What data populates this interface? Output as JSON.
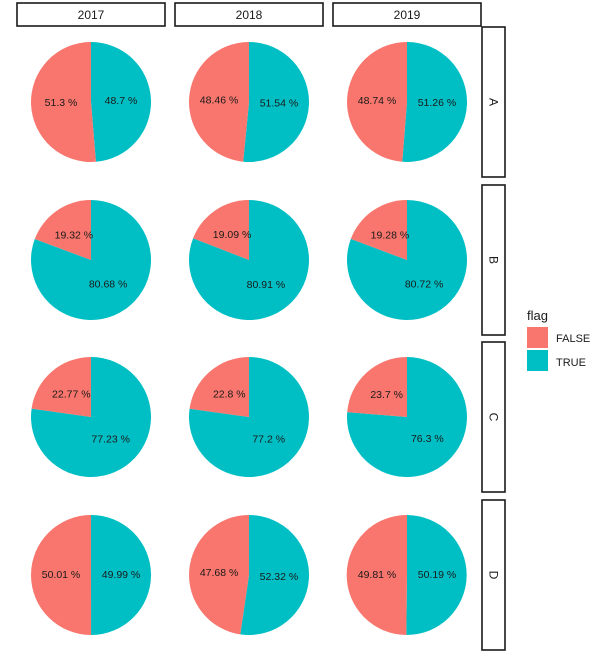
{
  "chart_data": {
    "type": "pie",
    "facet_columns": [
      "2017",
      "2018",
      "2019"
    ],
    "facet_rows": [
      "A",
      "B",
      "C",
      "D"
    ],
    "legend": {
      "title": "flag",
      "placement": "right",
      "entries": [
        {
          "name": "FALSE",
          "color": "#F8766D"
        },
        {
          "name": "TRUE",
          "color": "#00BFC4"
        }
      ]
    },
    "panels": [
      {
        "row": "A",
        "col": "2017",
        "slices": [
          {
            "name": "FALSE",
            "value": 51.3,
            "label": "51.3 %"
          },
          {
            "name": "TRUE",
            "value": 48.7,
            "label": "48.7 %"
          }
        ]
      },
      {
        "row": "A",
        "col": "2018",
        "slices": [
          {
            "name": "FALSE",
            "value": 48.46,
            "label": "48.46 %"
          },
          {
            "name": "TRUE",
            "value": 51.54,
            "label": "51.54 %"
          }
        ]
      },
      {
        "row": "A",
        "col": "2019",
        "slices": [
          {
            "name": "FALSE",
            "value": 48.74,
            "label": "48.74 %"
          },
          {
            "name": "TRUE",
            "value": 51.26,
            "label": "51.26 %"
          }
        ]
      },
      {
        "row": "B",
        "col": "2017",
        "slices": [
          {
            "name": "FALSE",
            "value": 19.32,
            "label": "19.32 %"
          },
          {
            "name": "TRUE",
            "value": 80.68,
            "label": "80.68 %"
          }
        ]
      },
      {
        "row": "B",
        "col": "2018",
        "slices": [
          {
            "name": "FALSE",
            "value": 19.09,
            "label": "19.09 %"
          },
          {
            "name": "TRUE",
            "value": 80.91,
            "label": "80.91 %"
          }
        ]
      },
      {
        "row": "B",
        "col": "2019",
        "slices": [
          {
            "name": "FALSE",
            "value": 19.28,
            "label": "19.28 %"
          },
          {
            "name": "TRUE",
            "value": 80.72,
            "label": "80.72 %"
          }
        ]
      },
      {
        "row": "C",
        "col": "2017",
        "slices": [
          {
            "name": "FALSE",
            "value": 22.77,
            "label": "22.77 %"
          },
          {
            "name": "TRUE",
            "value": 77.23,
            "label": "77.23 %"
          }
        ]
      },
      {
        "row": "C",
        "col": "2018",
        "slices": [
          {
            "name": "FALSE",
            "value": 22.8,
            "label": "22.8 %"
          },
          {
            "name": "TRUE",
            "value": 77.2,
            "label": "77.2 %"
          }
        ]
      },
      {
        "row": "C",
        "col": "2019",
        "slices": [
          {
            "name": "FALSE",
            "value": 23.7,
            "label": "23.7 %"
          },
          {
            "name": "TRUE",
            "value": 76.3,
            "label": "76.3 %"
          }
        ]
      },
      {
        "row": "D",
        "col": "2017",
        "slices": [
          {
            "name": "FALSE",
            "value": 50.01,
            "label": "50.01 %"
          },
          {
            "name": "TRUE",
            "value": 49.99,
            "label": "49.99 %"
          }
        ]
      },
      {
        "row": "D",
        "col": "2018",
        "slices": [
          {
            "name": "FALSE",
            "value": 47.68,
            "label": "47.68 %"
          },
          {
            "name": "TRUE",
            "value": 52.32,
            "label": "52.32 %"
          }
        ]
      },
      {
        "row": "D",
        "col": "2019",
        "slices": [
          {
            "name": "FALSE",
            "value": 49.81,
            "label": "49.81 %"
          },
          {
            "name": "TRUE",
            "value": 50.19,
            "label": "50.19 %"
          }
        ]
      }
    ]
  }
}
